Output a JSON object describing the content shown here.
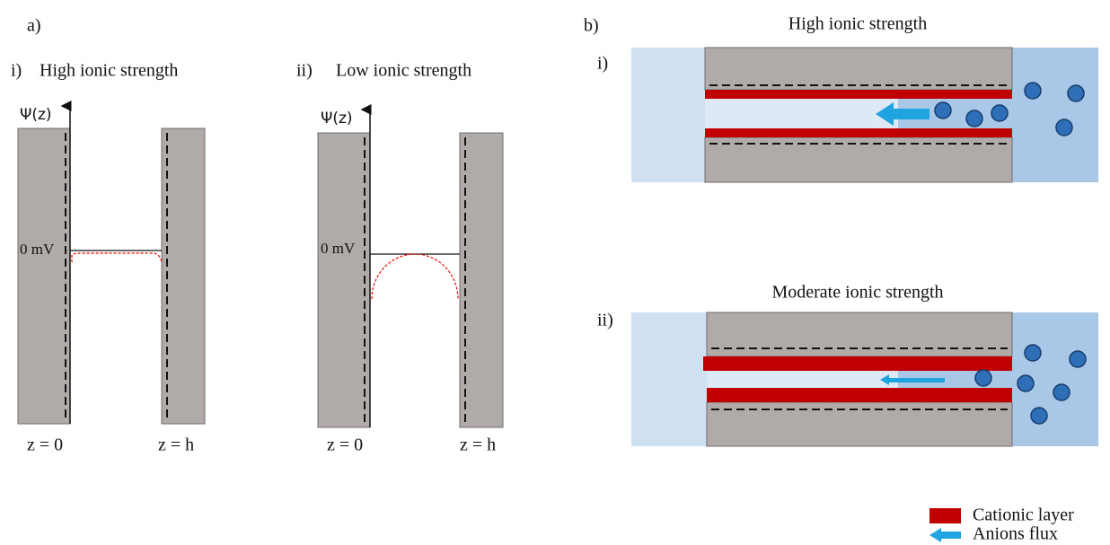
{
  "panel_a": {
    "label": "a)",
    "subpanels": [
      {
        "label": "i)",
        "title": "High ionic strength",
        "y_axis": "Ψ(z)",
        "zero_label": "0 mV",
        "left_label": "z = 0",
        "right_label": "z = h"
      },
      {
        "label": "ii)",
        "title": "Low ionic strength",
        "y_axis": "Ψ(z)",
        "zero_label": "0 mV",
        "left_label": "z = 0",
        "right_label": "z = h"
      }
    ]
  },
  "panel_b": {
    "label": "b)",
    "subpanels": [
      {
        "label": "i)",
        "title": "High ionic strength"
      },
      {
        "label": "ii)",
        "title": "Moderate ionic strength"
      }
    ]
  },
  "legend": [
    "Cationic layer",
    "Anions flux"
  ]
}
